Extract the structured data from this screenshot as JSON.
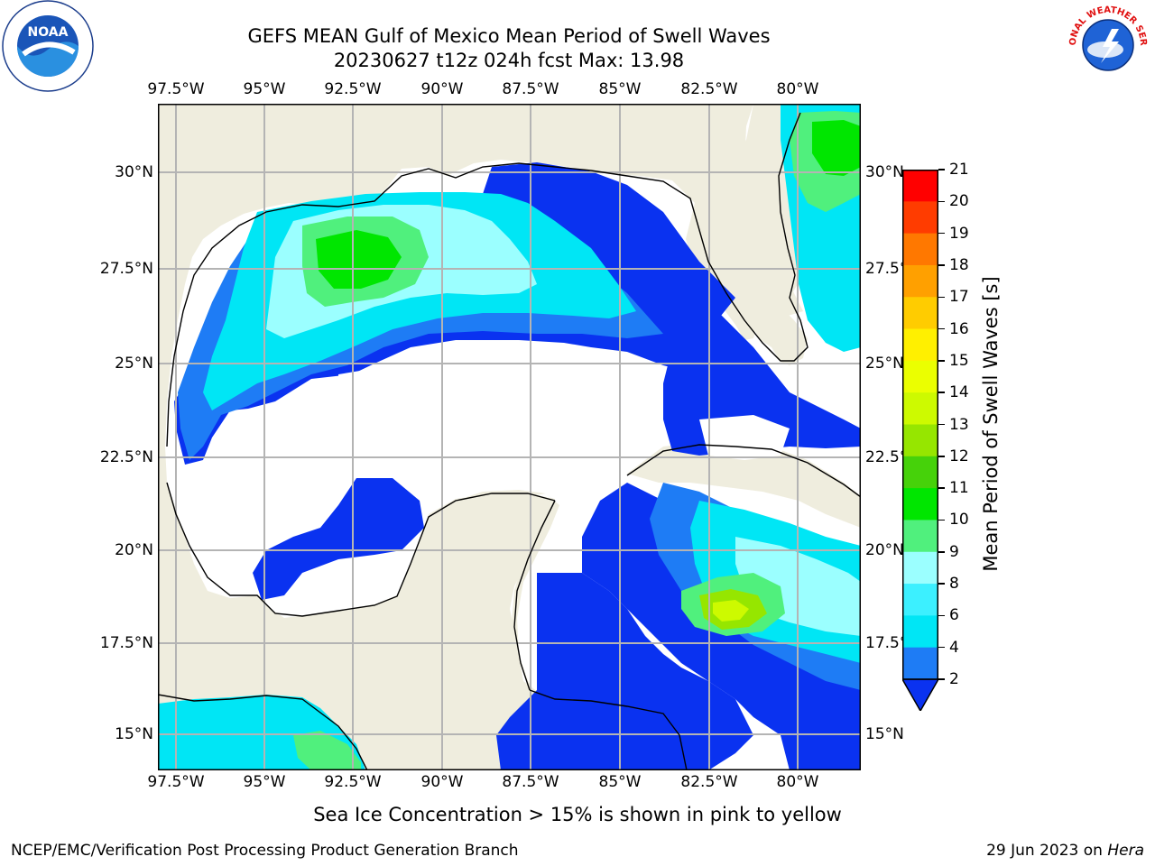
{
  "header": {
    "title_line1": "GEFS MEAN Gulf of Mexico Mean Period of Swell Waves",
    "title_line2": "20230627 t12z 024h fcst   Max: 13.98"
  },
  "map": {
    "lon_labels": [
      "97.5°W",
      "95°W",
      "92.5°W",
      "90°W",
      "87.5°W",
      "85°W",
      "82.5°W",
      "80°W"
    ],
    "lat_labels_left": [
      "30°N",
      "27.5°N",
      "25°N",
      "22.5°N",
      "20°N",
      "17.5°N",
      "15°N"
    ],
    "lat_labels_right": [
      "30°N",
      "27.5°N",
      "25°N",
      "22.5°N",
      "20°N",
      "17.5°N",
      "15°N"
    ],
    "lon_range": [
      -98,
      -78.2
    ],
    "lat_range": [
      14,
      31.6
    ],
    "grid": true,
    "land_color": "#efedde",
    "grid_color": "#b4b4b4"
  },
  "colorbar": {
    "label": "Mean Period of Swell Waves [s]",
    "ticks": [
      "2",
      "4",
      "6",
      "8",
      "9",
      "10",
      "11",
      "12",
      "13",
      "14",
      "15",
      "16",
      "17",
      "18",
      "19",
      "20",
      "21"
    ],
    "colors": [
      "#0a32f0",
      "#1e7cf5",
      "#00e6f5",
      "#3cf0ff",
      "#9bffff",
      "#50f07d",
      "#00e600",
      "#46d20a",
      "#96e600",
      "#cdfa00",
      "#ebff00",
      "#fff000",
      "#ffcc00",
      "#ffa000",
      "#ff7800",
      "#ff3c00",
      "#ff0000"
    ],
    "extend": "min"
  },
  "footer": {
    "note": "Sea Ice Concentration > 15% is shown in pink to yellow",
    "credit": "NCEP/EMC/Verification Post Processing Product Generation Branch",
    "date": "29 Jun 2023 on",
    "machine": "Hera"
  },
  "logos": {
    "noaa": "noaa-logo",
    "nws_text": "NATIONAL WEATHER SERVICE"
  }
}
